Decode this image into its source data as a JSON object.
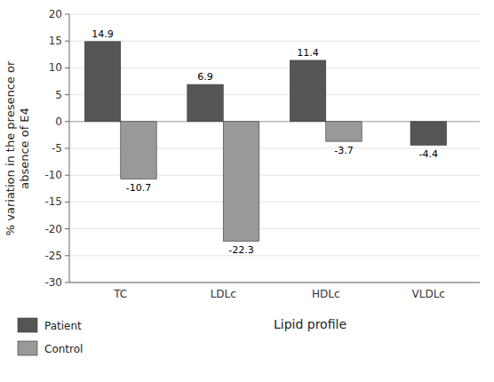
{
  "chart_data": {
    "type": "bar",
    "categories": [
      "TC",
      "LDLc",
      "HDLc",
      "VLDLc"
    ],
    "series": [
      {
        "name": "Patient",
        "color": "#555555",
        "values": [
          14.9,
          6.9,
          11.4,
          -4.4
        ]
      },
      {
        "name": "Control",
        "color": "#999999",
        "values": [
          -10.7,
          -22.3,
          -3.7,
          null
        ]
      }
    ],
    "y_label": "% variation in the presence or\nabsence of E4",
    "x_label": "Lipid profile",
    "ylim": [
      -30,
      20
    ],
    "yticks": [
      -30,
      -25,
      -20,
      -15,
      -10,
      -5,
      0,
      5,
      10,
      15,
      20
    ],
    "grid": true,
    "legend": "lower left",
    "data_labels": true
  }
}
